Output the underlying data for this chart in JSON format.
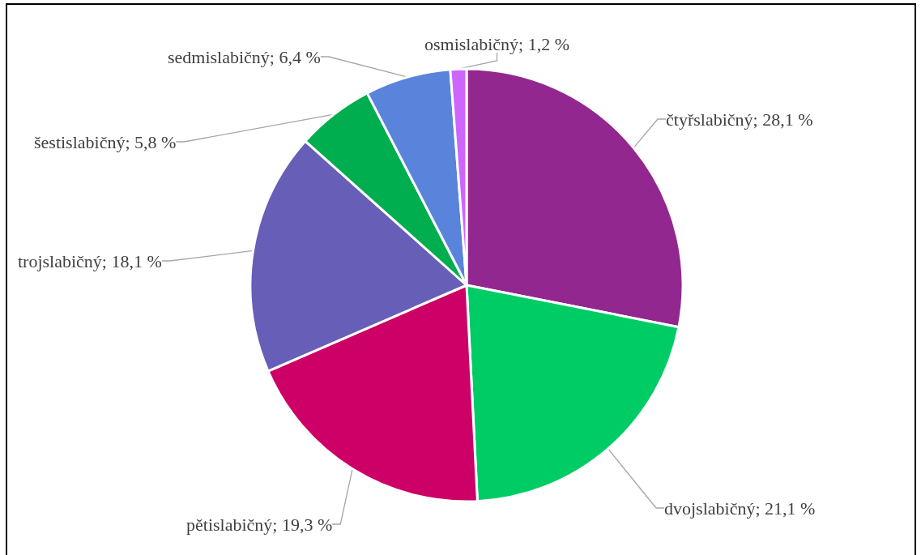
{
  "chart_data": {
    "type": "pie",
    "categories": [
      "čtyřslabičný",
      "dvojslabičný",
      "pětislabičný",
      "trojslabičný",
      "šestislabičný",
      "sedmislabičný",
      "osmislabičný"
    ],
    "values": [
      28.1,
      21.1,
      19.3,
      18.1,
      5.8,
      6.4,
      1.2
    ],
    "colors": [
      "#92278f",
      "#00cc66",
      "#cc0066",
      "#675eb7",
      "#00ae4f",
      "#5a83db",
      "#cc66ff"
    ],
    "value_labels": [
      "28,1 %",
      "21,1 %",
      "19,3 %",
      "18,1 %",
      "5,8 %",
      "6,4 %",
      "1,2 %"
    ]
  }
}
